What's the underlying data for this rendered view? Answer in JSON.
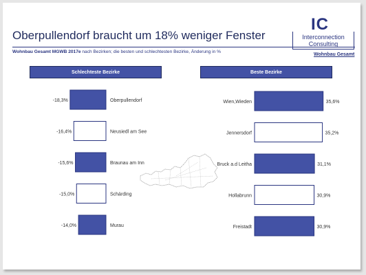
{
  "header": {
    "title": "Oberpullendorf braucht um 18% weniger Fenster",
    "subtitle_bold": "Wohnbau Gesamt MGWB 2017e",
    "subtitle_rest": "nach Bezirken; die besten und schlechtesten Bezirke, Änderung in %",
    "brand": "Wohnbau Gesamt"
  },
  "logo": {
    "mark": "IC",
    "line1": "Interconnection",
    "line2": "Consulting"
  },
  "colors": {
    "bar_fill": "#4352a5",
    "bar_stroke": "#2a3580",
    "hollow_fill": "#ffffff"
  },
  "chart_data": [
    {
      "type": "bar",
      "title": "Schlechteste Bezirke",
      "categories": [
        "Oberpullendorf",
        "Neusiedl am See",
        "Braunau am Inn",
        "Schärding",
        "Murau"
      ],
      "values": [
        -18.3,
        -16.4,
        -15.6,
        -15.0,
        -14.0
      ],
      "value_labels": [
        "-18,3%",
        "-16,4%",
        "-15,6%",
        "-15,0%",
        "-14,0%"
      ],
      "filled": [
        true,
        false,
        true,
        false,
        true
      ],
      "orientation": "horizontal"
    },
    {
      "type": "bar",
      "title": "Beste Bezirke",
      "categories": [
        "Wien,Wieden",
        "Jennersdorf",
        "Bruck a.d Leitha",
        "Hollabrunn",
        "Freistadt"
      ],
      "values": [
        35.6,
        35.2,
        31.1,
        30.9,
        30.9
      ],
      "value_labels": [
        "35,6%",
        "35,2%",
        "31,1%",
        "30,9%",
        "30,9%"
      ],
      "filled": [
        true,
        false,
        true,
        false,
        true
      ],
      "orientation": "horizontal"
    }
  ]
}
